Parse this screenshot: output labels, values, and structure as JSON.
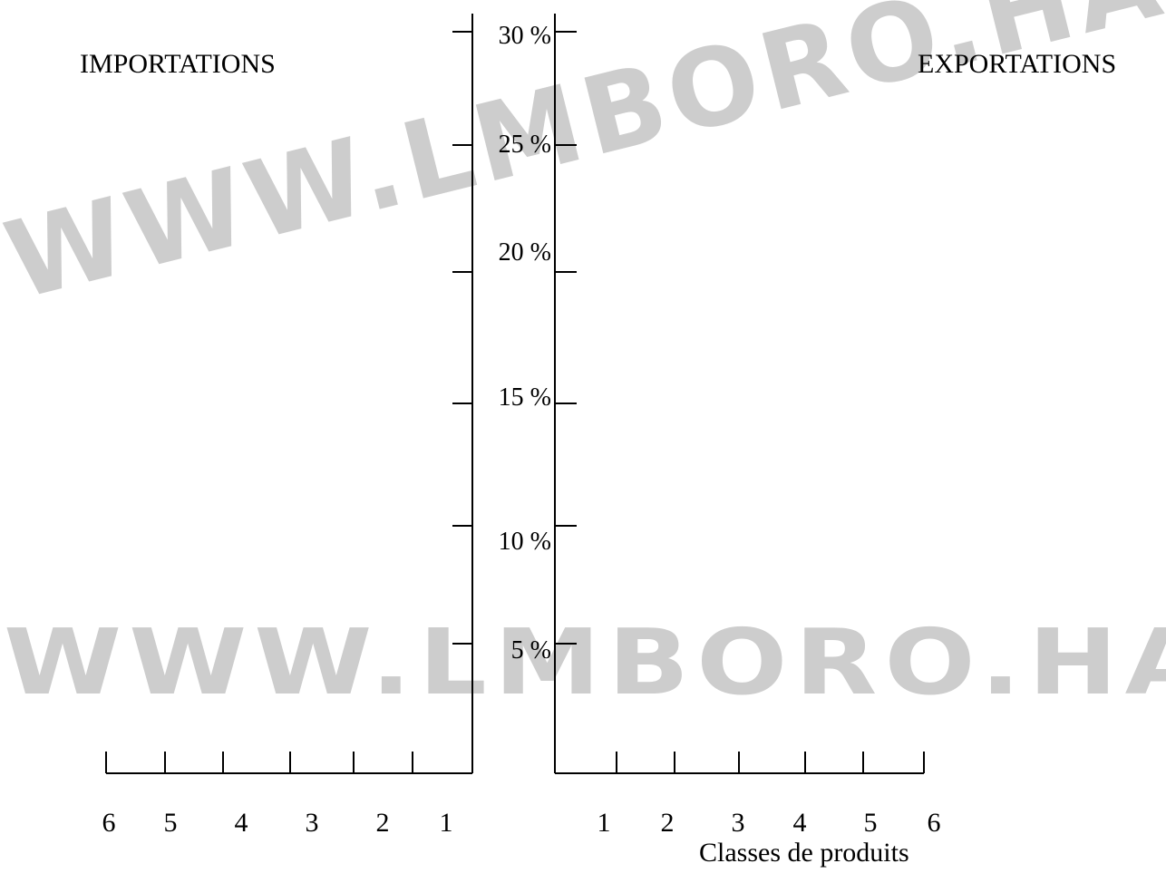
{
  "chart_data": {
    "type": "bar",
    "left_title": "IMPORTATIONS",
    "right_title": "EXPORTATIONS",
    "y_ticks": [
      "30 %",
      "25 %",
      "20 %",
      "15 %",
      "10 %",
      "5 %"
    ],
    "y_values": [
      30,
      25,
      20,
      15,
      10,
      5
    ],
    "ylim": [
      0,
      30
    ],
    "left_categories": [
      "6",
      "5",
      "4",
      "3",
      "2",
      "1"
    ],
    "right_categories": [
      "1",
      "2",
      "3",
      "4",
      "5",
      "6"
    ],
    "xlabel": "Classes de produits",
    "grid": false,
    "series": []
  },
  "watermark": {
    "upper": "WWW.LMBORO.HAS.IT",
    "lower": "WWW.LMBORO.HAS.IT",
    "color": "#c8c8c8"
  }
}
